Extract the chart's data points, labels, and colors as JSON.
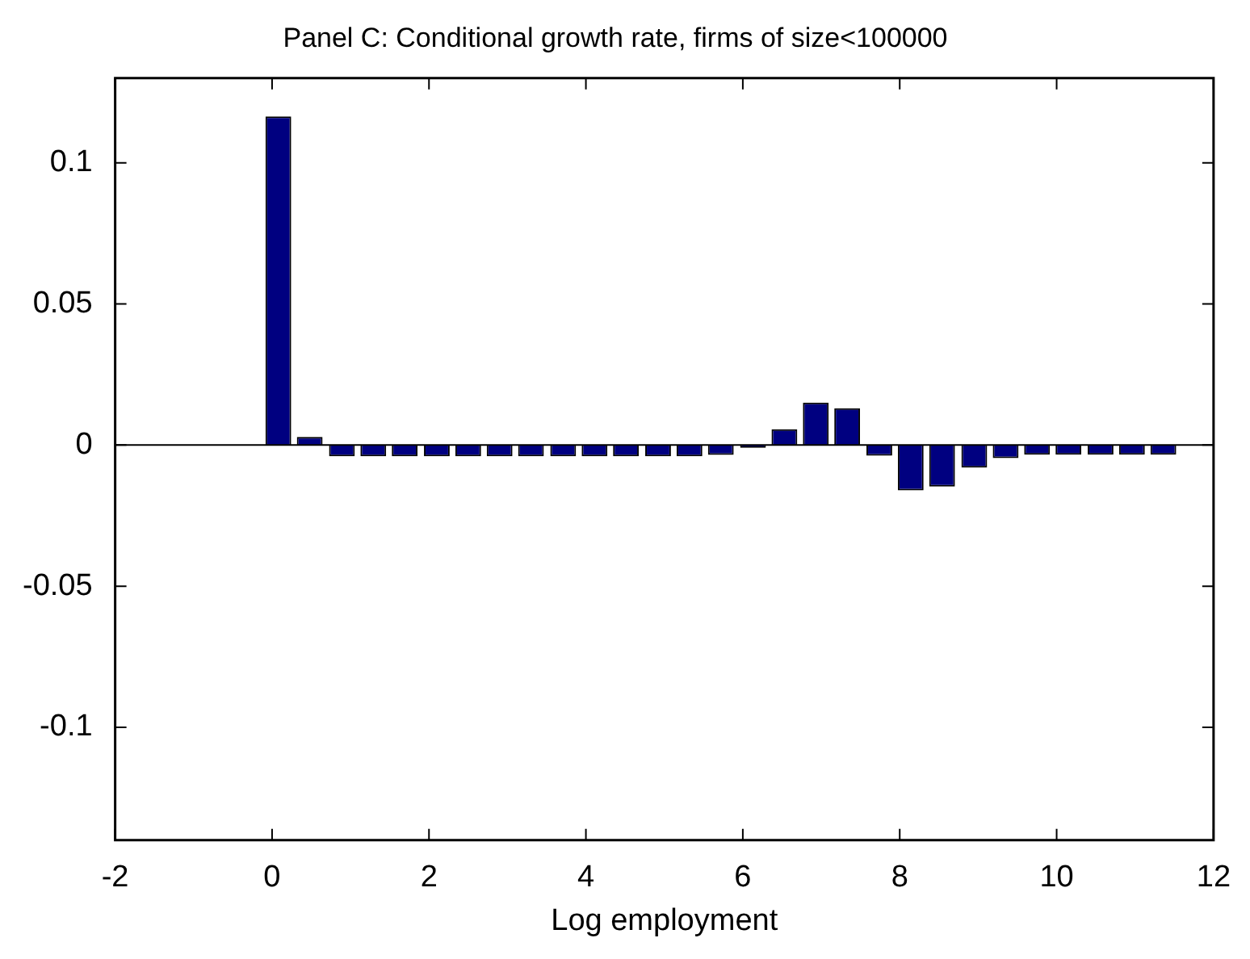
{
  "chart_data": {
    "type": "bar",
    "title": "Panel C: Conditional growth rate, firms of size<100000",
    "xlabel": "Log employment",
    "x": [
      0.08,
      0.48,
      0.89,
      1.29,
      1.69,
      2.1,
      2.5,
      2.9,
      3.3,
      3.71,
      4.11,
      4.51,
      4.92,
      5.32,
      5.72,
      6.13,
      6.53,
      6.93,
      7.33,
      7.74,
      8.14,
      8.54,
      8.95,
      9.35,
      9.75,
      10.15,
      10.56,
      10.96,
      11.36
    ],
    "values": [
      0.1164,
      0.0029,
      -0.004,
      -0.004,
      -0.004,
      -0.004,
      -0.004,
      -0.004,
      -0.004,
      -0.004,
      -0.004,
      -0.004,
      -0.004,
      -0.004,
      -0.0035,
      -0.001,
      0.0056,
      0.015,
      0.013,
      -0.0038,
      -0.0161,
      -0.0147,
      -0.008,
      -0.0046,
      -0.0034,
      -0.0034,
      -0.0034,
      -0.0034,
      -0.0034
    ],
    "color": "#000080",
    "xlim": [
      -2,
      12
    ],
    "xticks": [
      -2,
      0,
      2,
      4,
      6,
      8,
      10,
      12
    ],
    "ylim": [
      -0.14,
      0.13
    ],
    "yticks": [
      -0.1,
      -0.05,
      0,
      0.05,
      0.1
    ],
    "ref_lines": [
      {
        "axis": "y",
        "value": 0,
        "color": "#000000"
      }
    ]
  }
}
